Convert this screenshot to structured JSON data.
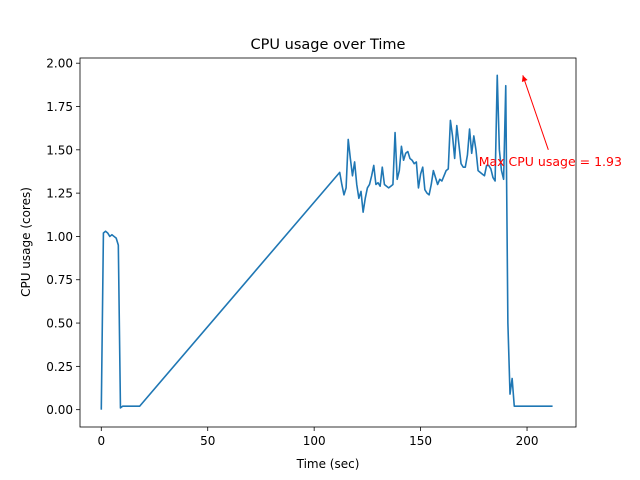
{
  "chart_data": {
    "type": "line",
    "title": "CPU usage over Time",
    "xlabel": "Time (sec)",
    "ylabel": "CPU usage (cores)",
    "xlim": [
      -10,
      223
    ],
    "ylim": [
      -0.1,
      2.03
    ],
    "xticks": [
      0,
      50,
      100,
      150,
      200
    ],
    "yticks": [
      0.0,
      0.25,
      0.5,
      0.75,
      1.0,
      1.25,
      1.5,
      1.75,
      2.0
    ],
    "xtick_labels": [
      "0",
      "50",
      "100",
      "150",
      "200"
    ],
    "ytick_labels": [
      "0.00",
      "0.25",
      "0.50",
      "0.75",
      "1.00",
      "1.25",
      "1.50",
      "1.75",
      "2.00"
    ],
    "grid": false,
    "series": [
      {
        "color": "#1f77b4",
        "x": [
          0,
          1,
          2,
          3,
          4,
          5,
          6,
          7,
          8,
          9,
          10,
          11,
          18,
          112,
          113,
          114,
          115,
          116,
          117,
          118,
          119,
          120,
          121,
          122,
          123,
          124,
          125,
          126,
          127,
          128,
          129,
          130,
          131,
          132,
          133,
          134,
          135,
          136,
          137,
          138,
          139,
          140,
          141,
          142,
          143,
          144,
          145,
          146,
          147,
          148,
          149,
          150,
          151,
          152,
          153,
          154,
          155,
          156,
          157,
          158,
          159,
          160,
          161,
          162,
          163,
          164,
          165,
          166,
          167,
          168,
          169,
          170,
          171,
          172,
          173,
          174,
          175,
          176,
          177,
          178,
          179,
          180,
          181,
          182,
          183,
          184,
          185,
          186,
          187,
          188,
          189,
          190,
          191,
          192,
          193,
          194,
          195,
          196,
          197,
          198,
          199,
          200,
          201,
          202,
          203,
          204,
          205,
          206,
          207,
          208,
          209,
          210,
          211,
          212
        ],
        "values": [
          0.0,
          1.02,
          1.03,
          1.02,
          1.0,
          1.01,
          1.0,
          0.99,
          0.95,
          0.01,
          0.02,
          0.02,
          0.02,
          1.37,
          1.3,
          1.24,
          1.28,
          1.56,
          1.45,
          1.35,
          1.43,
          1.3,
          1.22,
          1.26,
          1.14,
          1.22,
          1.28,
          1.3,
          1.35,
          1.41,
          1.3,
          1.31,
          1.29,
          1.4,
          1.3,
          1.29,
          1.28,
          1.29,
          1.3,
          1.6,
          1.33,
          1.38,
          1.52,
          1.44,
          1.48,
          1.49,
          1.45,
          1.44,
          1.42,
          1.43,
          1.28,
          1.36,
          1.4,
          1.27,
          1.25,
          1.24,
          1.3,
          1.38,
          1.34,
          1.3,
          1.33,
          1.32,
          1.35,
          1.38,
          1.39,
          1.67,
          1.58,
          1.45,
          1.64,
          1.53,
          1.42,
          1.4,
          1.4,
          1.47,
          1.62,
          1.48,
          1.58,
          1.5,
          1.38,
          1.37,
          1.36,
          1.35,
          1.41,
          1.41,
          1.39,
          1.34,
          1.32,
          1.93,
          1.5,
          1.38,
          1.33,
          1.87,
          0.5,
          0.09,
          0.18,
          0.02,
          0.02,
          0.02,
          0.02,
          0.02,
          0.02,
          0.02,
          0.02,
          0.02,
          0.02,
          0.02,
          0.02,
          0.02,
          0.02,
          0.02,
          0.02,
          0.02,
          0.02,
          0.02
        ]
      }
    ],
    "annotations": [
      {
        "text": "Max CPU usage = 1.93",
        "color": "#ff0000",
        "point": [
          198,
          1.93
        ],
        "text_pos": [
          210,
          1.5
        ]
      }
    ]
  }
}
